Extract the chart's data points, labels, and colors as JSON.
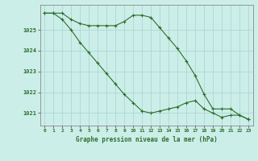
{
  "title": "Graphe pression niveau de la mer (hPa)",
  "background_color": "#cceee8",
  "grid_color": "#aad8d4",
  "line_color": "#2d6e2d",
  "x_labels": [
    "0",
    "1",
    "2",
    "3",
    "4",
    "5",
    "6",
    "7",
    "8",
    "9",
    "10",
    "11",
    "12",
    "13",
    "14",
    "15",
    "16",
    "17",
    "18",
    "19",
    "20",
    "21",
    "22",
    "23"
  ],
  "ylim": [
    1020.4,
    1026.2
  ],
  "yticks": [
    1021,
    1022,
    1023,
    1024,
    1025
  ],
  "series1": [
    1025.8,
    1025.8,
    1025.8,
    1025.5,
    1025.3,
    1025.2,
    1025.2,
    1025.2,
    1025.2,
    1025.4,
    1025.7,
    1025.7,
    1025.6,
    1025.1,
    1024.6,
    1024.1,
    1023.5,
    1022.8,
    1021.9,
    1021.2,
    1021.2,
    1021.2,
    1020.9,
    1020.7
  ],
  "series2": [
    1025.8,
    1025.8,
    1025.5,
    1025.0,
    1024.4,
    1023.9,
    1023.4,
    1022.9,
    1022.4,
    1021.9,
    1021.5,
    1021.1,
    1021.0,
    1021.1,
    1021.2,
    1021.3,
    1021.5,
    1021.6,
    1021.2,
    1021.0,
    1020.8,
    1020.9,
    1020.9,
    1020.7
  ]
}
